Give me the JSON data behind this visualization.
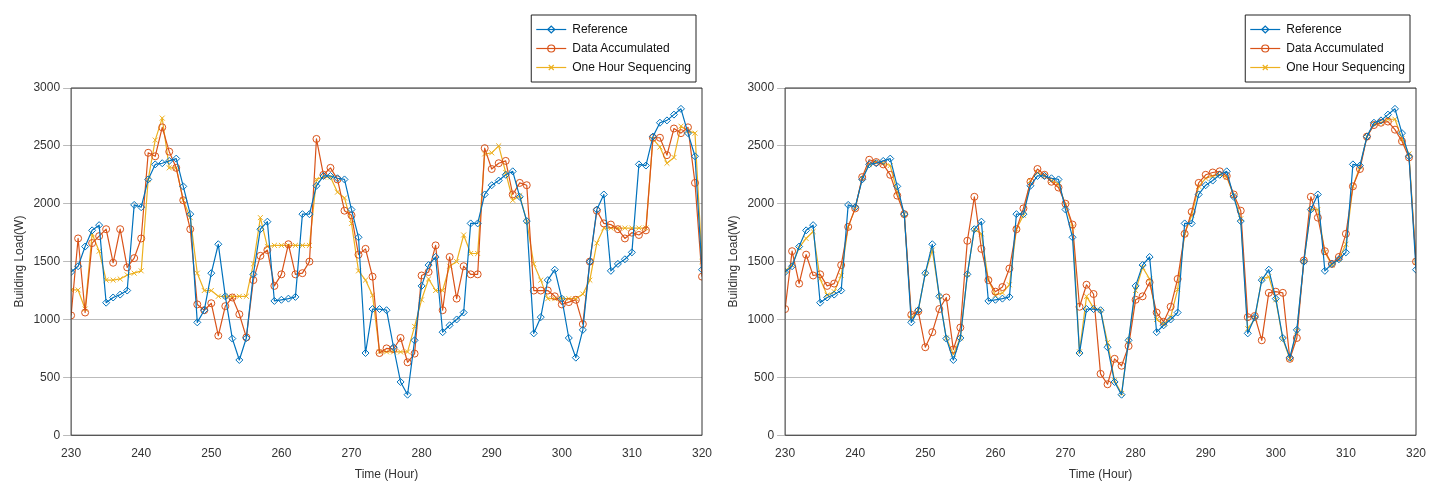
{
  "chart_data": [
    {
      "type": "line",
      "xlabel": "Time (Hour)",
      "ylabel": "Building Load(W)",
      "xlim": [
        230,
        320
      ],
      "xticks": [
        230,
        240,
        250,
        260,
        270,
        280,
        290,
        300,
        310,
        320
      ],
      "ylim": [
        0,
        3000
      ],
      "yticks": [
        0,
        500,
        1000,
        1500,
        2000,
        2500,
        3000
      ],
      "grid": "y",
      "legend": "top right",
      "line_style": "solid",
      "x": [
        230,
        231,
        232,
        233,
        234,
        235,
        236,
        237,
        238,
        239,
        240,
        241,
        242,
        243,
        244,
        245,
        246,
        247,
        248,
        249,
        250,
        251,
        252,
        253,
        254,
        255,
        256,
        257,
        258,
        259,
        260,
        261,
        262,
        263,
        264,
        265,
        266,
        267,
        268,
        269,
        270,
        271,
        272,
        273,
        274,
        275,
        276,
        277,
        278,
        279,
        280,
        281,
        282,
        283,
        284,
        285,
        286,
        287,
        288,
        289,
        290,
        291,
        292,
        293,
        294,
        295,
        296,
        297,
        298,
        299,
        300,
        301,
        302,
        303,
        304,
        305,
        306,
        307,
        308,
        309,
        310,
        311,
        312,
        313,
        314,
        315,
        316,
        317,
        318,
        319,
        320
      ],
      "series": [
        {
          "name": "Reference",
          "color": "#0072bd",
          "marker": "diamond",
          "values": [
            1410,
            1460,
            1630,
            1770,
            1815,
            1145,
            1190,
            1215,
            1250,
            1990,
            1970,
            2210,
            2340,
            2350,
            2370,
            2390,
            2150,
            1910,
            975,
            1080,
            1400,
            1650,
            1200,
            835,
            650,
            840,
            1390,
            1780,
            1845,
            1160,
            1170,
            1180,
            1195,
            1910,
            1910,
            2155,
            2240,
            2240,
            2220,
            2210,
            1950,
            1710,
            710,
            1090,
            1090,
            1080,
            760,
            460,
            350,
            820,
            1290,
            1470,
            1540,
            890,
            950,
            1000,
            1060,
            1830,
            1830,
            2080,
            2160,
            2200,
            2250,
            2280,
            2060,
            1850,
            880,
            1020,
            1340,
            1430,
            1180,
            840,
            670,
            910,
            1500,
            1950,
            2080,
            1420,
            1480,
            1520,
            1580,
            2340,
            2330,
            2580,
            2700,
            2720,
            2770,
            2820,
            2610,
            2410,
            1430
          ]
        },
        {
          "name": "Data Accumulated",
          "color": "#d95319",
          "marker": "circle",
          "values": [
            1035,
            1700,
            1060,
            1660,
            1720,
            1780,
            1490,
            1780,
            1450,
            1530,
            1700,
            2440,
            2410,
            2660,
            2450,
            2310,
            2030,
            1780,
            1130,
            1080,
            1140,
            860,
            1115,
            1190,
            1045,
            845,
            1340,
            1550,
            1600,
            1290,
            1390,
            1650,
            1390,
            1400,
            1500,
            2560,
            2250,
            2310,
            2210,
            1940,
            1900,
            1560,
            1610,
            1370,
            710,
            750,
            745,
            840,
            630,
            705,
            1380,
            1410,
            1640,
            1080,
            1540,
            1180,
            1460,
            1390,
            1390,
            2480,
            2300,
            2350,
            2370,
            2080,
            2180,
            2160,
            1250,
            1250,
            1250,
            1200,
            1130,
            1150,
            1170,
            960,
            1500,
            1940,
            1830,
            1820,
            1780,
            1700,
            1750,
            1730,
            1770,
            2570,
            2570,
            2420,
            2650,
            2610,
            2660,
            2180,
            1370
          ]
        },
        {
          "name": "One Hour Sequencing",
          "color": "#edb120",
          "marker": "cross",
          "values": [
            1255,
            1255,
            1090,
            1740,
            1590,
            1340,
            1340,
            1350,
            1385,
            1400,
            1420,
            2210,
            2550,
            2740,
            2310,
            2310,
            2030,
            1880,
            1400,
            1250,
            1250,
            1200,
            1200,
            1200,
            1200,
            1200,
            1480,
            1880,
            1630,
            1640,
            1640,
            1640,
            1640,
            1640,
            1640,
            2210,
            2230,
            2230,
            2100,
            2050,
            1830,
            1420,
            1340,
            1210,
            720,
            720,
            720,
            720,
            720,
            940,
            1170,
            1350,
            1250,
            1250,
            1460,
            1500,
            1730,
            1570,
            1570,
            2430,
            2440,
            2500,
            2270,
            2030,
            2070,
            1850,
            1480,
            1340,
            1180,
            1180,
            1180,
            1180,
            1180,
            1220,
            1340,
            1660,
            1790,
            1790,
            1790,
            1790,
            1790,
            1790,
            1790,
            2560,
            2490,
            2350,
            2400,
            2670,
            2630,
            2610,
            1500
          ]
        }
      ]
    },
    {
      "type": "line",
      "xlabel": "Time (Hour)",
      "ylabel": "Building Load(W)",
      "xlim": [
        230,
        320
      ],
      "xticks": [
        230,
        240,
        250,
        260,
        270,
        280,
        290,
        300,
        310,
        320
      ],
      "ylim": [
        0,
        3000
      ],
      "yticks": [
        0,
        500,
        1000,
        1500,
        2000,
        2500,
        3000
      ],
      "grid": "y",
      "legend": "top right",
      "line_style": "solid",
      "x": [
        230,
        231,
        232,
        233,
        234,
        235,
        236,
        237,
        238,
        239,
        240,
        241,
        242,
        243,
        244,
        245,
        246,
        247,
        248,
        249,
        250,
        251,
        252,
        253,
        254,
        255,
        256,
        257,
        258,
        259,
        260,
        261,
        262,
        263,
        264,
        265,
        266,
        267,
        268,
        269,
        270,
        271,
        272,
        273,
        274,
        275,
        276,
        277,
        278,
        279,
        280,
        281,
        282,
        283,
        284,
        285,
        286,
        287,
        288,
        289,
        290,
        291,
        292,
        293,
        294,
        295,
        296,
        297,
        298,
        299,
        300,
        301,
        302,
        303,
        304,
        305,
        306,
        307,
        308,
        309,
        310,
        311,
        312,
        313,
        314,
        315,
        316,
        317,
        318,
        319,
        320
      ],
      "series": [
        {
          "name": "Reference",
          "color": "#0072bd",
          "marker": "diamond",
          "values": [
            1410,
            1460,
            1630,
            1770,
            1815,
            1145,
            1190,
            1215,
            1250,
            1990,
            1970,
            2210,
            2340,
            2350,
            2370,
            2390,
            2150,
            1910,
            975,
            1080,
            1400,
            1650,
            1200,
            835,
            650,
            840,
            1390,
            1780,
            1845,
            1160,
            1170,
            1180,
            1195,
            1910,
            1910,
            2155,
            2240,
            2240,
            2220,
            2210,
            1950,
            1710,
            710,
            1090,
            1090,
            1080,
            760,
            460,
            350,
            820,
            1290,
            1470,
            1540,
            890,
            950,
            1000,
            1060,
            1830,
            1830,
            2080,
            2160,
            2200,
            2250,
            2280,
            2060,
            1850,
            880,
            1020,
            1340,
            1430,
            1180,
            840,
            670,
            910,
            1500,
            1950,
            2080,
            1420,
            1480,
            1520,
            1580,
            2340,
            2330,
            2580,
            2700,
            2720,
            2770,
            2820,
            2610,
            2410,
            1430
          ]
        },
        {
          "name": "Data Accumulated",
          "color": "#d95319",
          "marker": "circle",
          "values": [
            1090,
            1590,
            1310,
            1560,
            1380,
            1390,
            1290,
            1310,
            1470,
            1800,
            1960,
            2230,
            2380,
            2360,
            2340,
            2250,
            2070,
            1910,
            1040,
            1070,
            760,
            890,
            1090,
            1190,
            740,
            930,
            1680,
            2060,
            1610,
            1340,
            1240,
            1280,
            1440,
            1780,
            1960,
            2190,
            2300,
            2250,
            2190,
            2140,
            2000,
            1820,
            1110,
            1300,
            1220,
            530,
            440,
            660,
            600,
            770,
            1170,
            1200,
            1320,
            1060,
            980,
            1110,
            1350,
            1740,
            1930,
            2180,
            2250,
            2270,
            2280,
            2240,
            2080,
            1940,
            1020,
            1030,
            820,
            1230,
            1240,
            1230,
            660,
            840,
            1510,
            2060,
            1880,
            1590,
            1480,
            1540,
            1740,
            2150,
            2300,
            2580,
            2680,
            2700,
            2710,
            2640,
            2540,
            2400,
            1500
          ]
        },
        {
          "name": "One Hour Sequencing",
          "color": "#edb120",
          "marker": "cross",
          "values": [
            1420,
            1470,
            1620,
            1700,
            1760,
            1350,
            1210,
            1240,
            1380,
            1800,
            1960,
            2220,
            2340,
            2360,
            2350,
            2330,
            2100,
            1910,
            1010,
            1080,
            1400,
            1600,
            1200,
            840,
            700,
            840,
            1390,
            1780,
            1740,
            1340,
            1210,
            1230,
            1300,
            1780,
            1900,
            2200,
            2270,
            2240,
            2200,
            2170,
            1990,
            1800,
            720,
            1200,
            1100,
            1080,
            800,
            470,
            360,
            820,
            1250,
            1450,
            1350,
            1000,
            960,
            1020,
            1260,
            1740,
            1900,
            2150,
            2220,
            2240,
            2250,
            2230,
            2070,
            1870,
            920,
            1000,
            1350,
            1370,
            1170,
            830,
            660,
            900,
            1500,
            1950,
            1950,
            1580,
            1470,
            1520,
            1650,
            2150,
            2320,
            2580,
            2690,
            2700,
            2730,
            2730,
            2560,
            2430,
            1500
          ]
        }
      ]
    }
  ]
}
